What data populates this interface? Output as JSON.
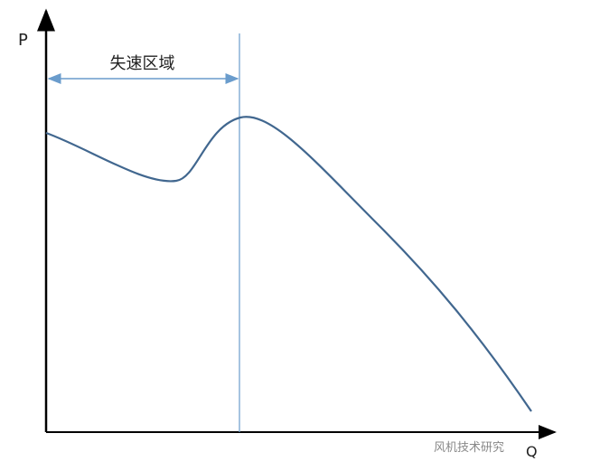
{
  "axes": {
    "y_label": "P",
    "x_label": "Q"
  },
  "region_label": "失速区域",
  "watermark": "风机技术研究",
  "colors": {
    "axis": "#000000",
    "curve": "#41678f",
    "marker": "#6a9ccc"
  }
}
